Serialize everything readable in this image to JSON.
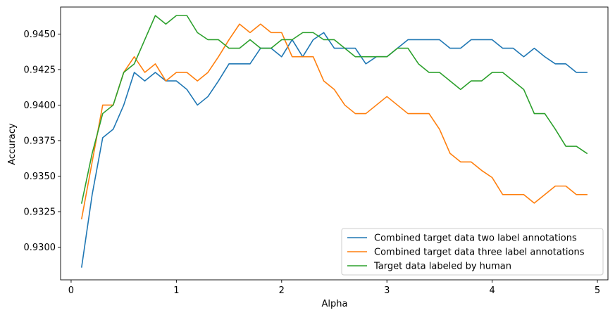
{
  "chart_data": {
    "type": "line",
    "title": "",
    "xlabel": "Alpha",
    "ylabel": "Accuracy",
    "xlim": [
      -0.1,
      5.1
    ],
    "ylim": [
      0.9277,
      0.9469
    ],
    "grid": false,
    "legend_position": "lower-right",
    "x_ticks": [
      0,
      1,
      2,
      3,
      4,
      5
    ],
    "x_tick_labels": [
      "0",
      "1",
      "2",
      "3",
      "4",
      "5"
    ],
    "y_ticks": [
      0.93,
      0.9325,
      0.935,
      0.9375,
      0.94,
      0.9425,
      0.945
    ],
    "y_tick_labels": [
      "0.9300",
      "0.9325",
      "0.9350",
      "0.9375",
      "0.9400",
      "0.9425",
      "0.9450"
    ],
    "x": [
      0.1,
      0.2,
      0.3,
      0.4,
      0.5,
      0.6,
      0.7,
      0.8,
      0.9,
      1.0,
      1.1,
      1.2,
      1.3,
      1.4,
      1.5,
      1.6,
      1.7,
      1.8,
      1.9,
      2.0,
      2.1,
      2.2,
      2.3,
      2.4,
      2.5,
      2.6,
      2.7,
      2.8,
      2.9,
      3.0,
      3.1,
      3.2,
      3.3,
      3.4,
      3.5,
      3.6,
      3.7,
      3.8,
      3.9,
      4.0,
      4.1,
      4.2,
      4.3,
      4.4,
      4.5,
      4.6,
      4.7,
      4.8,
      4.9
    ],
    "series": [
      {
        "name": "Combined target data two label annotations",
        "color": "#1f77b4",
        "values": [
          0.9286,
          0.9337,
          0.9377,
          0.9383,
          0.94,
          0.9423,
          0.9417,
          0.9423,
          0.9417,
          0.9417,
          0.9411,
          0.94,
          0.9406,
          0.9417,
          0.9429,
          0.9429,
          0.9429,
          0.944,
          0.944,
          0.9434,
          0.9446,
          0.9434,
          0.9446,
          0.9451,
          0.944,
          0.944,
          0.944,
          0.9429,
          0.9434,
          0.9434,
          0.944,
          0.9446,
          0.9446,
          0.9446,
          0.9446,
          0.944,
          0.944,
          0.9446,
          0.9446,
          0.9446,
          0.944,
          0.944,
          0.9434,
          0.944,
          0.9434,
          0.9429,
          0.9429,
          0.9423,
          0.9423
        ]
      },
      {
        "name": "Combined target data three label annotations",
        "color": "#ff7f0e",
        "values": [
          0.932,
          0.936,
          0.94,
          0.94,
          0.9423,
          0.9434,
          0.9423,
          0.9429,
          0.9417,
          0.9423,
          0.9423,
          0.9417,
          0.9423,
          0.9434,
          0.9446,
          0.9457,
          0.9451,
          0.9457,
          0.9451,
          0.9451,
          0.9434,
          0.9434,
          0.9434,
          0.9417,
          0.9411,
          0.94,
          0.9394,
          0.9394,
          0.94,
          0.9406,
          0.94,
          0.9394,
          0.9394,
          0.9394,
          0.9383,
          0.9366,
          0.936,
          0.936,
          0.9354,
          0.9349,
          0.9337,
          0.9337,
          0.9337,
          0.9331,
          0.9337,
          0.9343,
          0.9343,
          0.9337,
          0.9337
        ]
      },
      {
        "name": "Target data labeled by human",
        "color": "#2ca02c",
        "values": [
          0.9331,
          0.9366,
          0.9394,
          0.94,
          0.9423,
          0.9429,
          0.9446,
          0.9463,
          0.9457,
          0.9463,
          0.9463,
          0.9451,
          0.9446,
          0.9446,
          0.944,
          0.944,
          0.9446,
          0.944,
          0.944,
          0.9446,
          0.9446,
          0.9451,
          0.9451,
          0.9446,
          0.9446,
          0.944,
          0.9434,
          0.9434,
          0.9434,
          0.9434,
          0.944,
          0.944,
          0.9429,
          0.9423,
          0.9423,
          0.9417,
          0.9411,
          0.9417,
          0.9417,
          0.9423,
          0.9423,
          0.9417,
          0.9411,
          0.9394,
          0.9394,
          0.9383,
          0.9371,
          0.9371,
          0.9366
        ]
      }
    ]
  }
}
